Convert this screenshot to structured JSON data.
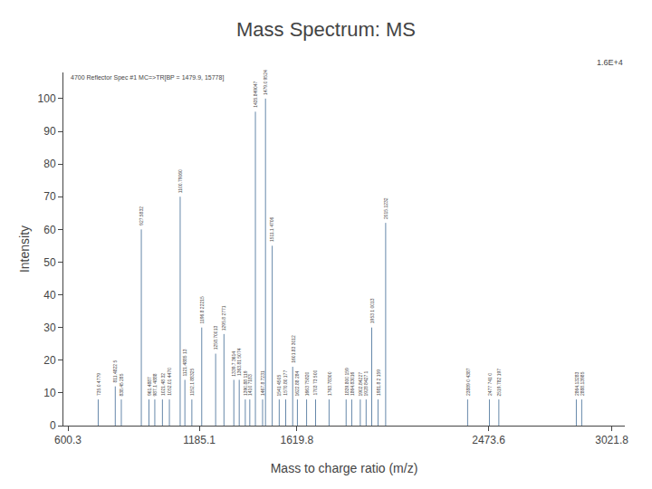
{
  "chart_data": {
    "type": "stem",
    "title": "Mass Spectrum: MS",
    "xlabel": "Mass to charge ratio (m/z)",
    "ylabel": "Intensity",
    "x": [
      735,
      811,
      838,
      927,
      961,
      987,
      1021,
      1052,
      1100,
      1121,
      1152,
      1196,
      1258,
      1295,
      1339,
      1363,
      1390,
      1410,
      1435,
      1467,
      1480,
      1510,
      1541,
      1570,
      1601,
      1622,
      1663,
      1703,
      1763,
      1839,
      1864,
      1902,
      1928,
      1953,
      1981,
      2015,
      2380,
      2477,
      2519,
      2864,
      2888
    ],
    "values": [
      8,
      12,
      8,
      60,
      8,
      8,
      8,
      8,
      70,
      14,
      8,
      30,
      22,
      28,
      14,
      14,
      8,
      8,
      96,
      8,
      100,
      55,
      8,
      8,
      18,
      8,
      8,
      8,
      8,
      8,
      8,
      8,
      8,
      30,
      8,
      62,
      8,
      8,
      8,
      8,
      8
    ],
    "labels": [
      "735.0 4779",
      "811.4822 5",
      "838.45 285",
      "927.5832",
      "961.4887",
      "987.1 4888",
      "1021.48 32",
      "1052.01 4470",
      "1100.79060",
      "1121.4885 13",
      "1152.1 88325",
      "1196.8 22215",
      "1258.70013",
      "1295.8 2771",
      "1339.7 3614",
      "1363.81 5074",
      "1390.88 119",
      "1410 7183",
      "1435.849047",
      "1467.8 7231",
      "1479.0 9524",
      "1511.1 4706",
      "1541 4505",
      "1570.80 177",
      "1601.83 3012",
      "1622.88 284",
      "1663 75820",
      "1703 73 500",
      "1763.78300",
      "1839.800 159",
      "1864.83016",
      "1902.84227",
      "1928 8427 1",
      "1953 1 0013",
      "1981.8 2 159",
      "2015.1232",
      "23889 0 4387",
      "2477 741 0",
      "2519.782 197",
      "2864.13283",
      "2888.13985"
    ],
    "color": "#6688AA",
    "xlim": [
      580,
      3080
    ],
    "ylim": [
      0,
      108
    ],
    "xticks": [
      600.3,
      1185.1,
      1619.8,
      2473.6,
      3021.8
    ],
    "yticks": [
      0,
      10,
      20,
      30,
      40,
      50,
      60,
      70,
      80,
      90,
      100
    ],
    "grid": false,
    "annotations": [
      "4700 Reflector Spec #1 MC=>TR[BP = 1479.9, 15778]",
      "1.6E+4"
    ]
  }
}
